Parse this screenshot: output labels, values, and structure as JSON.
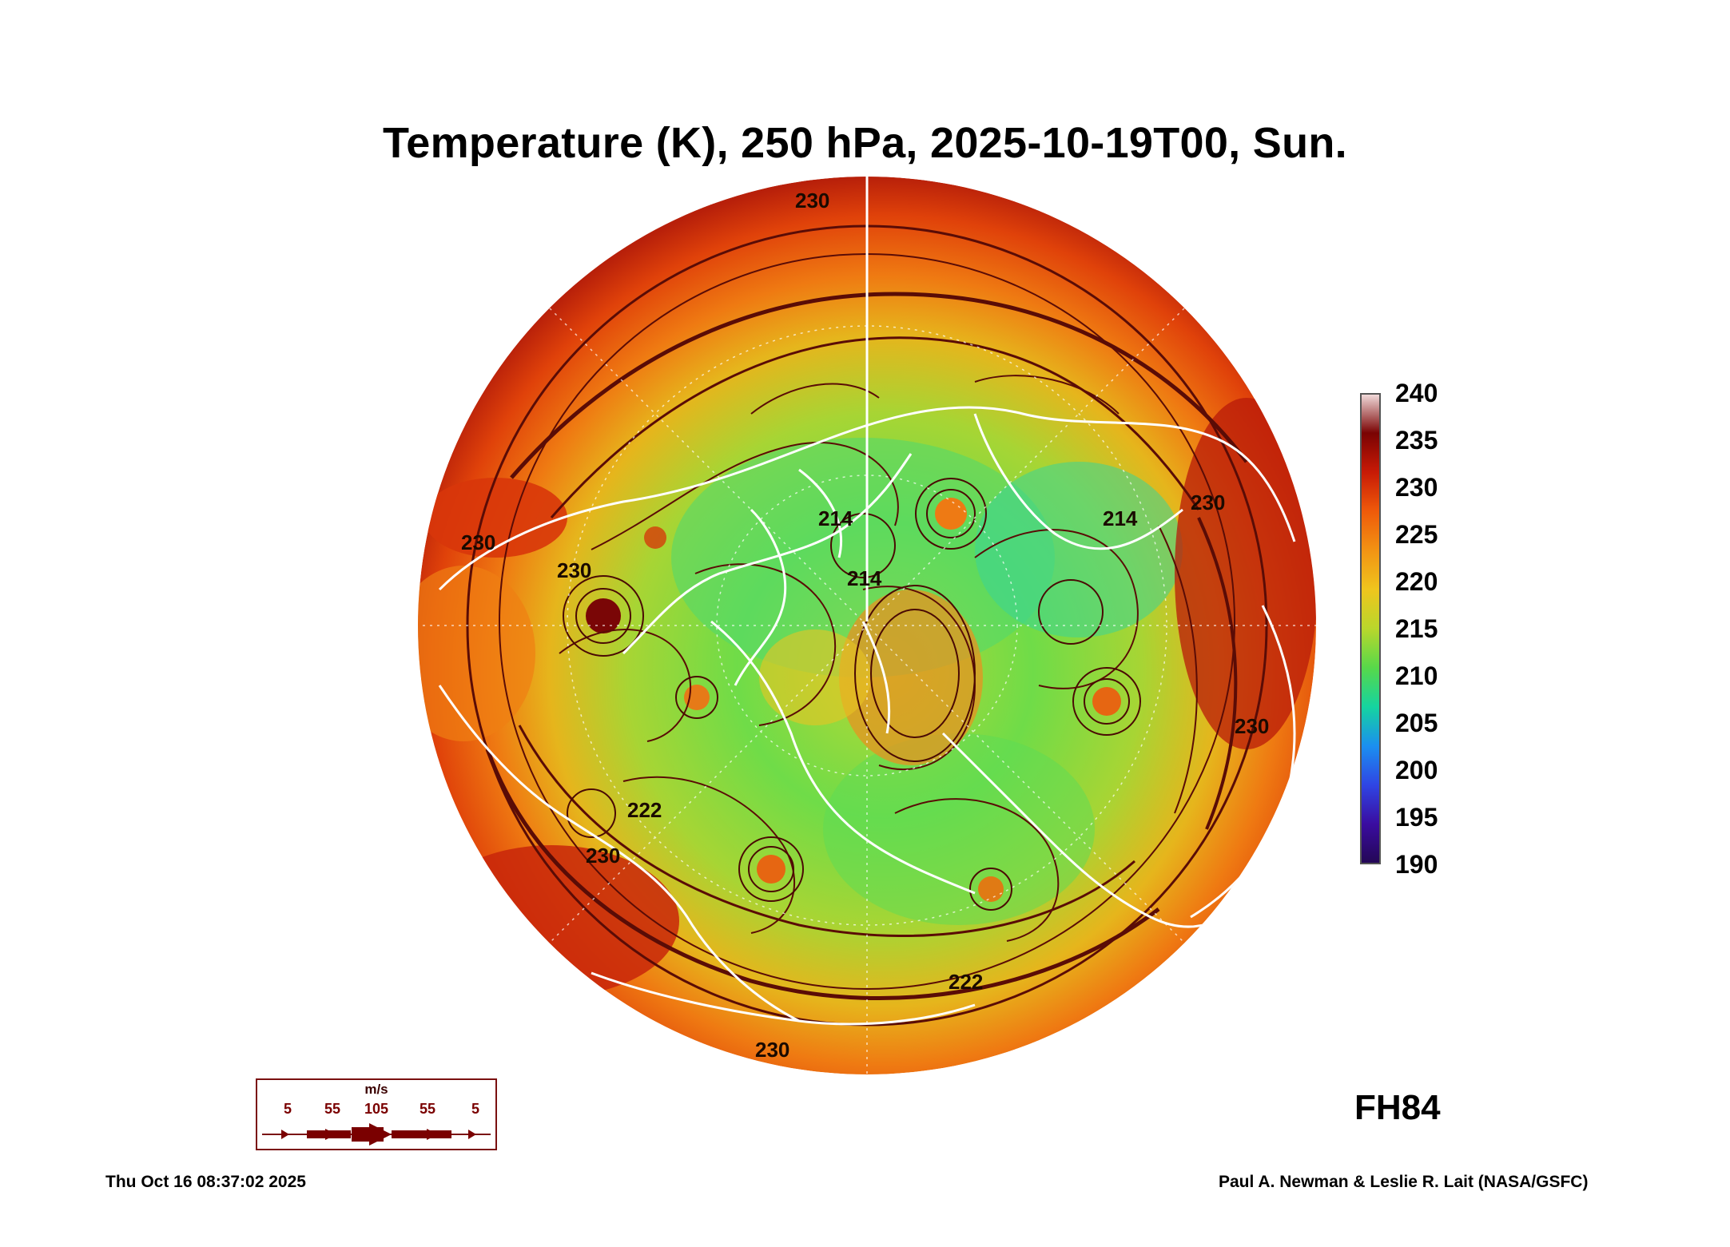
{
  "title": "Temperature (K), 250 hPa, 2025-10-19T00, Sun.",
  "colorbar": {
    "ticks": [
      "240",
      "235",
      "230",
      "225",
      "220",
      "215",
      "210",
      "205",
      "200",
      "195",
      "190"
    ],
    "min": 190,
    "max": 240,
    "stops": [
      "#f3dede",
      "#7a0303",
      "#c81a06",
      "#ef5a0a",
      "#f29313",
      "#efc51d",
      "#b9d72c",
      "#57d84a",
      "#15d4a0",
      "#1b8ff0",
      "#2f45e4",
      "#3a0ca0",
      "#230754"
    ]
  },
  "map": {
    "contour_labels": [
      "230",
      "214",
      "214",
      "214",
      "230",
      "230",
      "222",
      "230",
      "222",
      "230",
      "230",
      "230"
    ]
  },
  "forecast_hour": "FH84",
  "wind_legend": {
    "unit": "m/s",
    "values": [
      "5",
      "55",
      "105",
      "55",
      "5"
    ]
  },
  "footer": {
    "timestamp": "Thu Oct 16 08:37:02 2025",
    "credit": "Paul A. Newman & Leslie R. Lait (NASA/GSFC)"
  },
  "colors": {
    "hot": "#c0280a",
    "warm": "#ef6a10",
    "mid": "#dccc28",
    "cool": "#6fdc48",
    "cold": "#36d890",
    "coast": "#ffffff",
    "streamline": "#5a0c06"
  }
}
